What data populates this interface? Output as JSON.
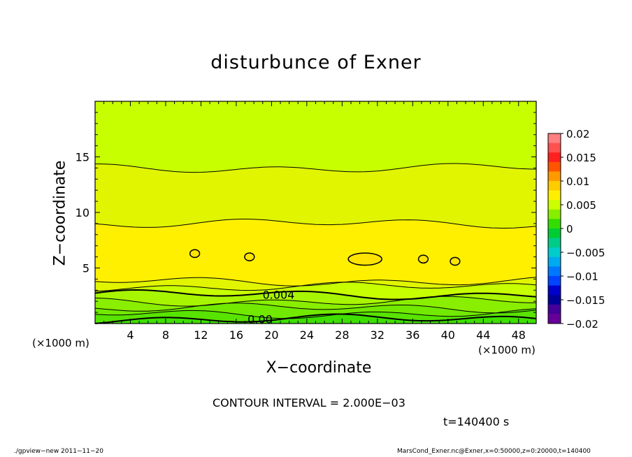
{
  "header": {
    "title": "disturbunce of Exner"
  },
  "axes": {
    "xlabel": "X−coordinate",
    "ylabel": "Z−coordinate",
    "x_unit_left": "(×1000 m)",
    "x_unit_right": "(×1000 m)"
  },
  "annotations": {
    "contour_interval": "CONTOUR INTERVAL = 2.000E−03",
    "time": "t=140400 s"
  },
  "footer": {
    "left": "./gpview−new   2011−11−20",
    "right": "MarsCond_Exner.nc@Exner,x=0:50000,z=0:20000,t=140400"
  },
  "chart_data": {
    "type": "heatmap",
    "title": "disturbunce of Exner",
    "xlabel": "X−coordinate",
    "ylabel": "Z−coordinate",
    "x_unit": "(×1000 m)",
    "xlim": [
      0,
      50
    ],
    "ylim": [
      0,
      20
    ],
    "x_ticks": [
      4,
      8,
      12,
      16,
      20,
      24,
      28,
      32,
      36,
      40,
      44,
      48
    ],
    "y_ticks": [
      5,
      10,
      15
    ],
    "colorbar": {
      "range": [
        -0.02,
        0.02
      ],
      "tick_values": [
        0.02,
        0.015,
        0.01,
        0.005,
        0,
        -0.005,
        -0.01,
        -0.015,
        -0.02
      ],
      "tick_labels": [
        "0.02",
        "0.015",
        "0.01",
        "0.005",
        "0",
        "−0.005",
        "−0.01",
        "−0.015",
        "−0.02"
      ],
      "colors": [
        "#ff8080",
        "#ff5050",
        "#ff2020",
        "#ff5500",
        "#ff9900",
        "#ffcc00",
        "#ffee00",
        "#ccff00",
        "#88ee00",
        "#33dd00",
        "#00cc33",
        "#00cc88",
        "#00cccc",
        "#00aaee",
        "#0077ff",
        "#0044ff",
        "#0000cc",
        "#000099",
        "#440099",
        "#660099"
      ]
    },
    "contour_levels": [
      0.0,
      0.002,
      0.004,
      0.006,
      0.008
    ],
    "contour_labels": [
      {
        "text": "0.004",
        "x": 20.8,
        "z": 2.6
      },
      {
        "text": "0.00",
        "x": 18.7,
        "z": 0.4
      }
    ],
    "bands": [
      {
        "z_top": 20.0,
        "value": 0.0055
      },
      {
        "z_top": 14.0,
        "value": 0.0065
      },
      {
        "z_top": 9.0,
        "value": 0.0075
      },
      {
        "z_top": 3.8,
        "value": 0.0065
      },
      {
        "z_top": 3.3,
        "value": 0.0055
      },
      {
        "z_top": 2.6,
        "value": 0.0045
      },
      {
        "z_top": 2.0,
        "value": 0.0035
      },
      {
        "z_top": 1.4,
        "value": 0.0025
      },
      {
        "z_top": 0.9,
        "value": 0.0015
      },
      {
        "z_top": 0.4,
        "value": 0.0005
      }
    ],
    "closed_contours": [
      {
        "x": 30.6,
        "z": 5.8,
        "value": 0.008
      },
      {
        "x": 11.3,
        "z": 6.3,
        "value": 0.008
      },
      {
        "x": 17.5,
        "z": 6.0,
        "value": 0.008
      },
      {
        "x": 37.2,
        "z": 5.8,
        "value": 0.008
      },
      {
        "x": 40.8,
        "z": 5.6,
        "value": 0.008
      }
    ],
    "interval": 0.002,
    "time": "t=140400 s"
  }
}
